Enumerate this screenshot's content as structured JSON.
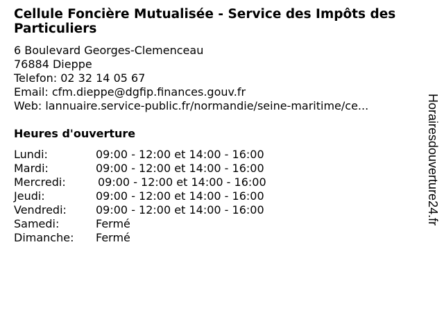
{
  "title": "Cellule Foncière Mutualisée - Service des Impôts des Particuliers",
  "address": {
    "street": "6 Boulevard Georges-Clemenceau",
    "city": "76884 Dieppe",
    "phone": "Telefon: 02 32 14 05 67",
    "email": "Email: cfm.dieppe@dgfip.finances.gouv.fr",
    "web": "Web: lannuaire.service-public.fr/normandie/seine-maritime/ce..."
  },
  "hours_heading": "Heures d'ouverture",
  "hours": [
    {
      "day": "Lundi:",
      "time": "09:00 - 12:00 et 14:00 - 16:00"
    },
    {
      "day": "Mardi:",
      "time": "09:00 - 12:00 et 14:00 - 16:00"
    },
    {
      "day": "Mercredi:",
      "time": "09:00 - 12:00 et 14:00 - 16:00"
    },
    {
      "day": "Jeudi:",
      "time": "09:00 - 12:00 et 14:00 - 16:00"
    },
    {
      "day": "Vendredi:",
      "time": "09:00 - 12:00 et 14:00 - 16:00"
    },
    {
      "day": "Samedi:",
      "time": "Fermé"
    },
    {
      "day": "Dimanche:",
      "time": "Fermé"
    }
  ],
  "watermark": "Horairesdouverture24.fr"
}
